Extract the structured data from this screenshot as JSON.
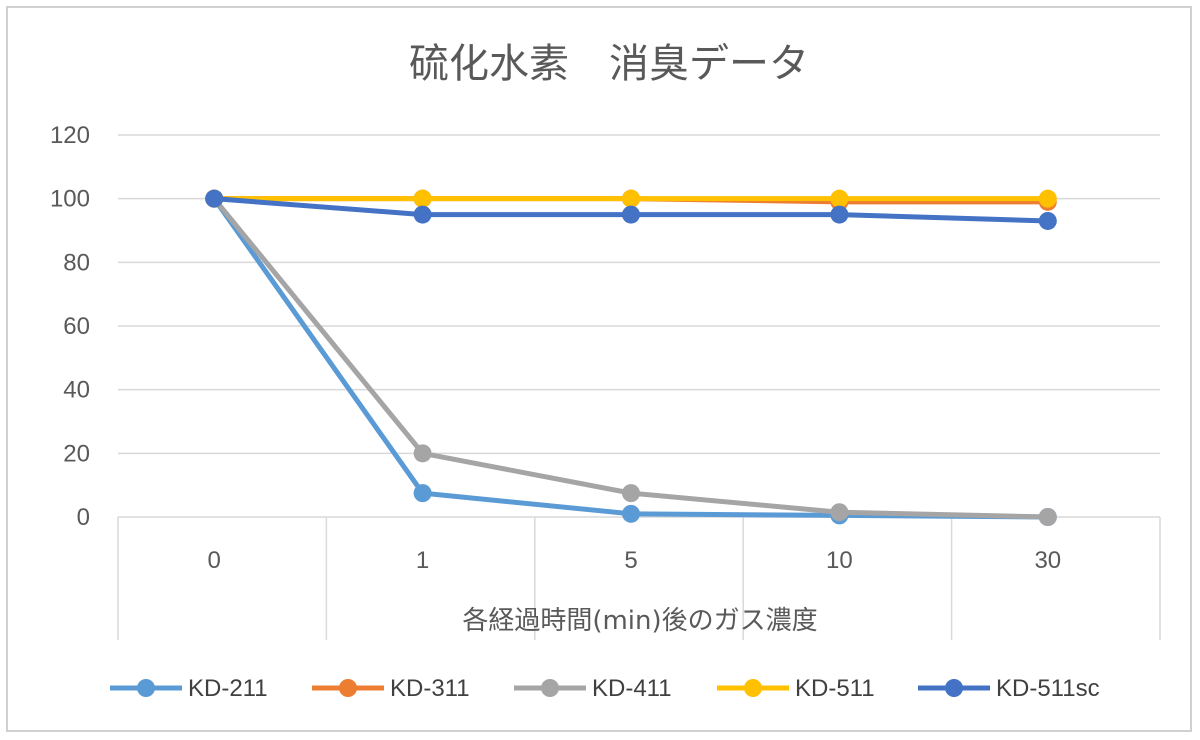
{
  "chart_data": {
    "type": "line",
    "title": "硫化水素　消臭データ",
    "xlabel": "各経過時間(min)後のガス濃度",
    "ylabel": "",
    "categories": [
      "0",
      "1",
      "5",
      "10",
      "30"
    ],
    "ylim": [
      0,
      120
    ],
    "yticks": [
      0,
      20,
      40,
      60,
      80,
      100,
      120
    ],
    "grid": true,
    "legend_position": "bottom",
    "series": [
      {
        "name": "KD-211",
        "color": "#5B9BD5",
        "values": [
          100,
          7.5,
          1,
          0.5,
          0
        ]
      },
      {
        "name": "KD-311",
        "color": "#ED7D31",
        "values": [
          100,
          100,
          100,
          99,
          99
        ]
      },
      {
        "name": "KD-411",
        "color": "#A5A5A5",
        "values": [
          100,
          20,
          7.5,
          1.5,
          0
        ]
      },
      {
        "name": "KD-511",
        "color": "#FFC000",
        "values": [
          100,
          100,
          100,
          100,
          100
        ]
      },
      {
        "name": "KD-511sc",
        "color": "#4472C4",
        "values": [
          100,
          95,
          95,
          95,
          93
        ]
      }
    ]
  }
}
